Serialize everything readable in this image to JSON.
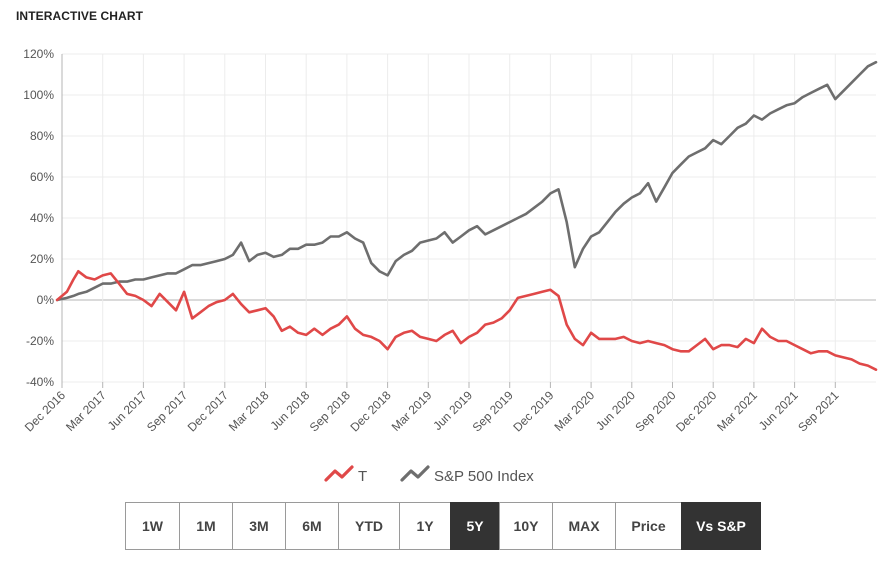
{
  "header": {
    "title": "INTERACTIVE CHART"
  },
  "range_buttons": [
    {
      "label": "1W",
      "active": false
    },
    {
      "label": "1M",
      "active": false
    },
    {
      "label": "3M",
      "active": false
    },
    {
      "label": "6M",
      "active": false
    },
    {
      "label": "YTD",
      "active": false
    },
    {
      "label": "1Y",
      "active": false
    },
    {
      "label": "5Y",
      "active": true
    },
    {
      "label": "10Y",
      "active": false
    },
    {
      "label": "MAX",
      "active": false
    },
    {
      "label": "Price",
      "active": false
    },
    {
      "label": "Vs S&P",
      "active": true
    }
  ],
  "chart_data": {
    "type": "line",
    "title": "",
    "xlabel": "",
    "ylabel": "",
    "ylim": [
      -40,
      120
    ],
    "y_ticks": [
      -40,
      -20,
      0,
      20,
      40,
      60,
      80,
      100,
      120
    ],
    "y_tick_labels": [
      "-40%",
      "-20%",
      "0%",
      "20%",
      "40%",
      "60%",
      "80%",
      "100%",
      "120%"
    ],
    "x_range": [
      2016.95,
      2021.95
    ],
    "x_ticks": [
      2016.95,
      2017.2,
      2017.45,
      2017.7,
      2017.95,
      2018.2,
      2018.45,
      2018.7,
      2018.95,
      2019.2,
      2019.45,
      2019.7,
      2019.95,
      2020.2,
      2020.45,
      2020.7,
      2020.95,
      2021.2,
      2021.45,
      2021.7
    ],
    "x_tick_labels": [
      "Dec 2016",
      "Mar 2017",
      "Jun 2017",
      "Sep 2017",
      "Dec 2017",
      "Mar 2018",
      "Jun 2018",
      "Sep 2018",
      "Dec 2018",
      "Mar 2019",
      "Jun 2019",
      "Sep 2019",
      "Dec 2019",
      "Mar 2020",
      "Jun 2020",
      "Sep 2020",
      "Dec 2020",
      "Mar 2021",
      "Jun 2021",
      "Sep 2021"
    ],
    "grid": true,
    "legend_position": "bottom",
    "series": [
      {
        "name": "T",
        "color": "#e04848",
        "x": [
          2016.92,
          2016.98,
          2017.02,
          2017.05,
          2017.1,
          2017.15,
          2017.2,
          2017.25,
          2017.3,
          2017.35,
          2017.4,
          2017.45,
          2017.5,
          2017.55,
          2017.6,
          2017.65,
          2017.7,
          2017.75,
          2017.8,
          2017.85,
          2017.9,
          2017.95,
          2018.0,
          2018.05,
          2018.1,
          2018.15,
          2018.2,
          2018.25,
          2018.3,
          2018.35,
          2018.4,
          2018.45,
          2018.5,
          2018.55,
          2018.6,
          2018.65,
          2018.7,
          2018.75,
          2018.8,
          2018.85,
          2018.9,
          2018.95,
          2019.0,
          2019.05,
          2019.1,
          2019.15,
          2019.2,
          2019.25,
          2019.3,
          2019.35,
          2019.4,
          2019.45,
          2019.5,
          2019.55,
          2019.6,
          2019.65,
          2019.7,
          2019.75,
          2019.8,
          2019.85,
          2019.9,
          2019.95,
          2020.0,
          2020.05,
          2020.1,
          2020.15,
          2020.2,
          2020.25,
          2020.3,
          2020.35,
          2020.4,
          2020.45,
          2020.5,
          2020.55,
          2020.6,
          2020.65,
          2020.7,
          2020.75,
          2020.8,
          2020.85,
          2020.9,
          2020.95,
          2021.0,
          2021.05,
          2021.1,
          2021.15,
          2021.2,
          2021.25,
          2021.3,
          2021.35,
          2021.4,
          2021.45,
          2021.5,
          2021.55,
          2021.6,
          2021.65,
          2021.7,
          2021.75,
          2021.8,
          2021.85,
          2021.9,
          2021.95
        ],
        "values": [
          0,
          4,
          10,
          14,
          11,
          10,
          12,
          13,
          8,
          3,
          2,
          0,
          -3,
          3,
          -1,
          -5,
          4,
          -9,
          -6,
          -3,
          -1,
          0,
          3,
          -2,
          -6,
          -5,
          -4,
          -8,
          -15,
          -13,
          -16,
          -17,
          -14,
          -17,
          -14,
          -12,
          -8,
          -14,
          -17,
          -18,
          -20,
          -24,
          -18,
          -16,
          -15,
          -18,
          -19,
          -20,
          -17,
          -15,
          -21,
          -18,
          -16,
          -12,
          -11,
          -9,
          -5,
          1,
          2,
          3,
          4,
          5,
          2,
          -12,
          -19,
          -22,
          -16,
          -19,
          -19,
          -19,
          -18,
          -20,
          -21,
          -20,
          -21,
          -22,
          -24,
          -25,
          -25,
          -22,
          -19,
          -24,
          -22,
          -22,
          -23,
          -19,
          -21,
          -14,
          -18,
          -20,
          -20,
          -22,
          -24,
          -26,
          -25,
          -25,
          -27,
          -28,
          -29,
          -31,
          -32,
          -34
        ]
      },
      {
        "name": "S&P 500 Index",
        "color": "#6e6e6e",
        "x": [
          2016.92,
          2016.98,
          2017.02,
          2017.05,
          2017.1,
          2017.15,
          2017.2,
          2017.25,
          2017.3,
          2017.35,
          2017.4,
          2017.45,
          2017.5,
          2017.55,
          2017.6,
          2017.65,
          2017.7,
          2017.75,
          2017.8,
          2017.85,
          2017.9,
          2017.95,
          2018.0,
          2018.05,
          2018.1,
          2018.15,
          2018.2,
          2018.25,
          2018.3,
          2018.35,
          2018.4,
          2018.45,
          2018.5,
          2018.55,
          2018.6,
          2018.65,
          2018.7,
          2018.75,
          2018.8,
          2018.85,
          2018.9,
          2018.95,
          2019.0,
          2019.05,
          2019.1,
          2019.15,
          2019.2,
          2019.25,
          2019.3,
          2019.35,
          2019.4,
          2019.45,
          2019.5,
          2019.55,
          2019.6,
          2019.65,
          2019.7,
          2019.75,
          2019.8,
          2019.85,
          2019.9,
          2019.95,
          2020.0,
          2020.05,
          2020.1,
          2020.15,
          2020.2,
          2020.25,
          2020.3,
          2020.35,
          2020.4,
          2020.45,
          2020.5,
          2020.55,
          2020.6,
          2020.65,
          2020.7,
          2020.75,
          2020.8,
          2020.85,
          2020.9,
          2020.95,
          2021.0,
          2021.05,
          2021.1,
          2021.15,
          2021.2,
          2021.25,
          2021.3,
          2021.35,
          2021.4,
          2021.45,
          2021.5,
          2021.55,
          2021.6,
          2021.65,
          2021.7,
          2021.75,
          2021.8,
          2021.85,
          2021.9,
          2021.95
        ],
        "values": [
          0,
          1,
          2,
          3,
          4,
          6,
          8,
          8,
          9,
          9,
          10,
          10,
          11,
          12,
          13,
          13,
          15,
          17,
          17,
          18,
          19,
          20,
          22,
          28,
          19,
          22,
          23,
          21,
          22,
          25,
          25,
          27,
          27,
          28,
          31,
          31,
          33,
          30,
          28,
          18,
          14,
          12,
          19,
          22,
          24,
          28,
          29,
          30,
          33,
          28,
          31,
          34,
          36,
          32,
          34,
          36,
          38,
          40,
          42,
          45,
          48,
          52,
          54,
          38,
          16,
          25,
          31,
          33,
          38,
          43,
          47,
          50,
          52,
          57,
          48,
          55,
          62,
          66,
          70,
          72,
          74,
          78,
          76,
          80,
          84,
          86,
          90,
          88,
          91,
          93,
          95,
          96,
          99,
          101,
          103,
          105,
          98,
          102,
          106,
          110,
          114,
          116
        ]
      }
    ]
  }
}
